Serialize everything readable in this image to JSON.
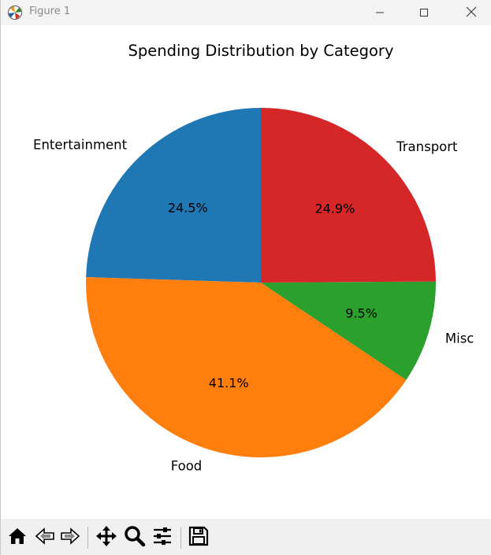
{
  "window": {
    "title": "Figure 1",
    "app_icon": "matplotlib-logo-icon",
    "controls": [
      "minimize-icon",
      "maximize-icon",
      "close-icon"
    ]
  },
  "toolbar": {
    "buttons": [
      "home-icon",
      "back-arrow-icon",
      "forward-arrow-icon",
      "pan-icon",
      "zoom-icon",
      "configure-subplots-icon",
      "save-icon"
    ]
  },
  "chart_data": {
    "type": "pie",
    "title": "Spending Distribution by Category",
    "start_angle_deg": 90,
    "direction": "counterclockwise",
    "slices": [
      {
        "label": "Entertainment",
        "percent": 24.5,
        "pct_label": "24.5%",
        "color": "#1f77b4"
      },
      {
        "label": "Food",
        "percent": 41.1,
        "pct_label": "41.1%",
        "color": "#ff7f0e"
      },
      {
        "label": "Misc",
        "percent": 9.5,
        "pct_label": "9.5%",
        "color": "#2ca02c"
      },
      {
        "label": "Transport",
        "percent": 24.9,
        "pct_label": "24.9%",
        "color": "#d62728"
      }
    ]
  }
}
